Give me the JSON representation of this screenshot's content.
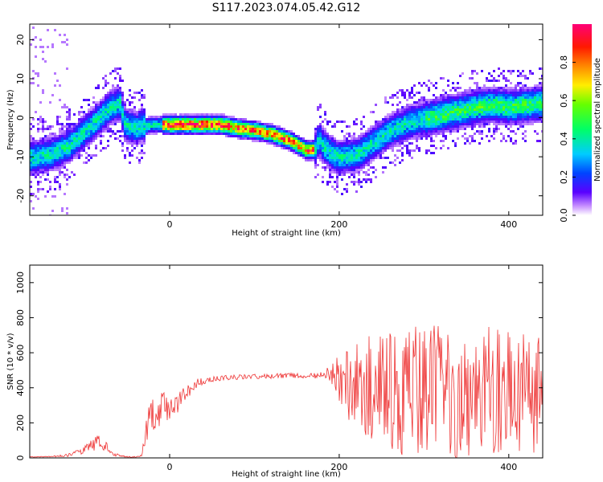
{
  "figure": {
    "title": "S117.2023.074.05.42.G12"
  },
  "chart_data": [
    {
      "type": "heatmap",
      "xlabel": "Height of straight line (km)",
      "ylabel": "Frequency (Hz)",
      "xlim": [
        -165,
        440
      ],
      "ylim": [
        -25,
        24
      ],
      "xticks": [
        0,
        200,
        400
      ],
      "yticks": [
        20,
        10,
        0,
        -10,
        -20
      ],
      "colorbar": {
        "label": "Normalized spectral amplitude",
        "range": [
          0,
          1
        ],
        "ticks": [
          "0.0",
          "0.2",
          "0.4",
          "0.6",
          "0.8"
        ],
        "colormap": "gist_rainbow_r"
      },
      "ridge": {
        "x": [
          -165,
          -140,
          -120,
          -100,
          -85,
          -70,
          -60,
          -55,
          -50,
          -45,
          -40,
          -35,
          -30,
          -20,
          0,
          20,
          40,
          60,
          80,
          100,
          120,
          140,
          160,
          170,
          175,
          180,
          190,
          200,
          220,
          240,
          260,
          280,
          300,
          320,
          340,
          360,
          380,
          400,
          420,
          440
        ],
        "frequency": [
          -10,
          -9,
          -7,
          -3,
          0,
          3,
          4,
          -1,
          -2,
          -2,
          -2.5,
          -1.5,
          -2,
          -1.5,
          -1.5,
          -1.5,
          -1.5,
          -1.5,
          -2.5,
          -3,
          -4,
          -5.5,
          -8,
          -8,
          -5,
          -7,
          -9,
          -10,
          -9,
          -6,
          -3,
          -1,
          0,
          1,
          2,
          3,
          3.5,
          3,
          3.5,
          4
        ]
      }
    },
    {
      "type": "line",
      "xlabel": "Height of straight line (km)",
      "ylabel": "SNR (10 * v/v)",
      "xlim": [
        -165,
        440
      ],
      "ylim": [
        0,
        1100
      ],
      "xticks": [
        0,
        200,
        400
      ],
      "yticks": [
        0,
        200,
        400,
        600,
        800,
        1000
      ],
      "series": [
        {
          "color": "#ee3333",
          "x": [
            -165,
            -140,
            -120,
            -105,
            -95,
            -85,
            -75,
            -65,
            -55,
            -45,
            -35,
            -30,
            -25,
            -20,
            -10,
            0,
            10,
            20,
            30,
            40,
            50,
            60,
            80,
            100,
            120,
            140,
            160,
            180,
            190,
            200,
            210,
            220,
            240,
            260,
            280,
            300,
            320,
            340,
            360,
            380,
            400,
            420,
            440
          ],
          "y": [
            5,
            8,
            15,
            40,
            60,
            90,
            60,
            20,
            10,
            5,
            10,
            60,
            230,
            250,
            280,
            300,
            330,
            370,
            420,
            440,
            450,
            455,
            460,
            465,
            465,
            470,
            470,
            470,
            480,
            450,
            420,
            410,
            390,
            380,
            380,
            370,
            380,
            360,
            370,
            380,
            360,
            370,
            380
          ],
          "spread": [
            2,
            3,
            8,
            20,
            30,
            45,
            30,
            10,
            5,
            3,
            5,
            40,
            100,
            110,
            90,
            80,
            70,
            50,
            30,
            20,
            15,
            15,
            15,
            15,
            15,
            15,
            15,
            20,
            60,
            150,
            200,
            250,
            320,
            350,
            370,
            380,
            380,
            380,
            380,
            380,
            370,
            360,
            340
          ]
        }
      ]
    }
  ]
}
